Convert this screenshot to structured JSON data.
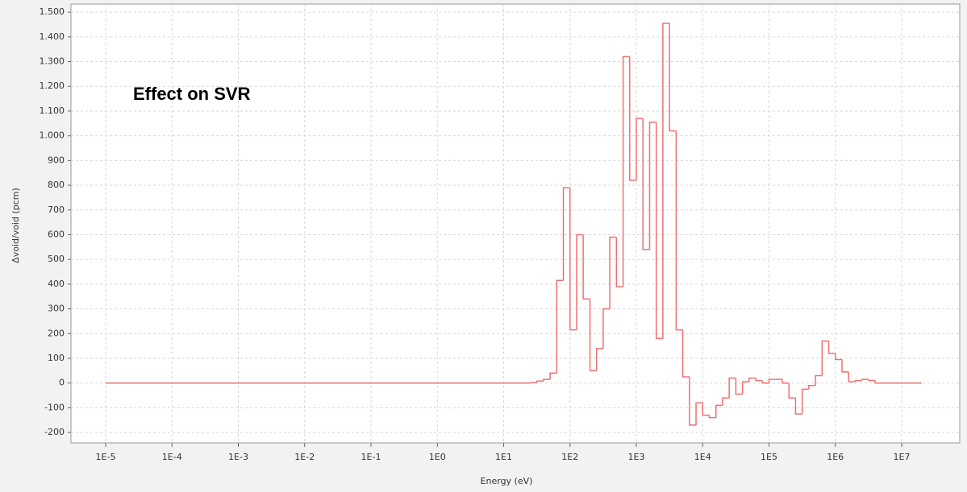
{
  "chart_data": {
    "type": "histogram",
    "annotation": "Effect on SVR",
    "x_label": "Energy (eV)",
    "y_label": "Δvoid/void (pcm)",
    "color": "#f07070",
    "log_x": true,
    "grid": true,
    "bins": [
      1e-05,
      25.1,
      31.6,
      39.8,
      50.1,
      63.1,
      79.4,
      100,
      126,
      158,
      200,
      251,
      316,
      398,
      501,
      631,
      794,
      1000,
      1259,
      1585,
      1995,
      2512,
      3162,
      3981,
      5012,
      6310,
      7943,
      10000,
      12589,
      15849,
      19953,
      25119,
      31623,
      39811,
      50119,
      63096,
      79433,
      100000,
      125893,
      158489,
      199526,
      251189,
      316228,
      398107,
      501187,
      630957,
      794328,
      1000000,
      1258925,
      1584893,
      1995262,
      2511886,
      3162278,
      3981072,
      20000000
    ],
    "values": [
      0,
      2,
      8,
      15,
      40,
      415,
      790,
      215,
      600,
      340,
      50,
      140,
      300,
      590,
      390,
      1320,
      820,
      1070,
      540,
      1055,
      180,
      1455,
      1020,
      215,
      25,
      -170,
      -80,
      -130,
      -140,
      -90,
      -60,
      20,
      -45,
      5,
      20,
      10,
      0,
      15,
      15,
      0,
      -60,
      -125,
      -25,
      -10,
      30,
      170,
      120,
      95,
      45,
      5,
      10,
      15,
      10,
      0
    ],
    "xlim": [
      3e-06,
      75000000
    ],
    "ylim": [
      -242,
      1533
    ],
    "xticks": [
      {
        "value": 1e-05,
        "label": "1E-5"
      },
      {
        "value": 0.0001,
        "label": "1E-4"
      },
      {
        "value": 0.001,
        "label": "1E-3"
      },
      {
        "value": 0.01,
        "label": "1E-2"
      },
      {
        "value": 0.1,
        "label": "1E-1"
      },
      {
        "value": 1,
        "label": "1E0"
      },
      {
        "value": 10,
        "label": "1E1"
      },
      {
        "value": 100,
        "label": "1E2"
      },
      {
        "value": 1000,
        "label": "1E3"
      },
      {
        "value": 10000,
        "label": "1E4"
      },
      {
        "value": 100000,
        "label": "1E5"
      },
      {
        "value": 1000000,
        "label": "1E6"
      },
      {
        "value": 10000000,
        "label": "1E7"
      }
    ],
    "yticks": [
      -200,
      -100,
      0,
      100,
      200,
      300,
      400,
      500,
      600,
      700,
      800,
      900,
      {
        "value": 1000,
        "label": "1.000"
      },
      {
        "value": 1100,
        "label": "1.100"
      },
      {
        "value": 1200,
        "label": "1.200"
      },
      {
        "value": 1300,
        "label": "1.300"
      },
      {
        "value": 1400,
        "label": "1.400"
      },
      {
        "value": 1500,
        "label": "1.500"
      }
    ]
  }
}
